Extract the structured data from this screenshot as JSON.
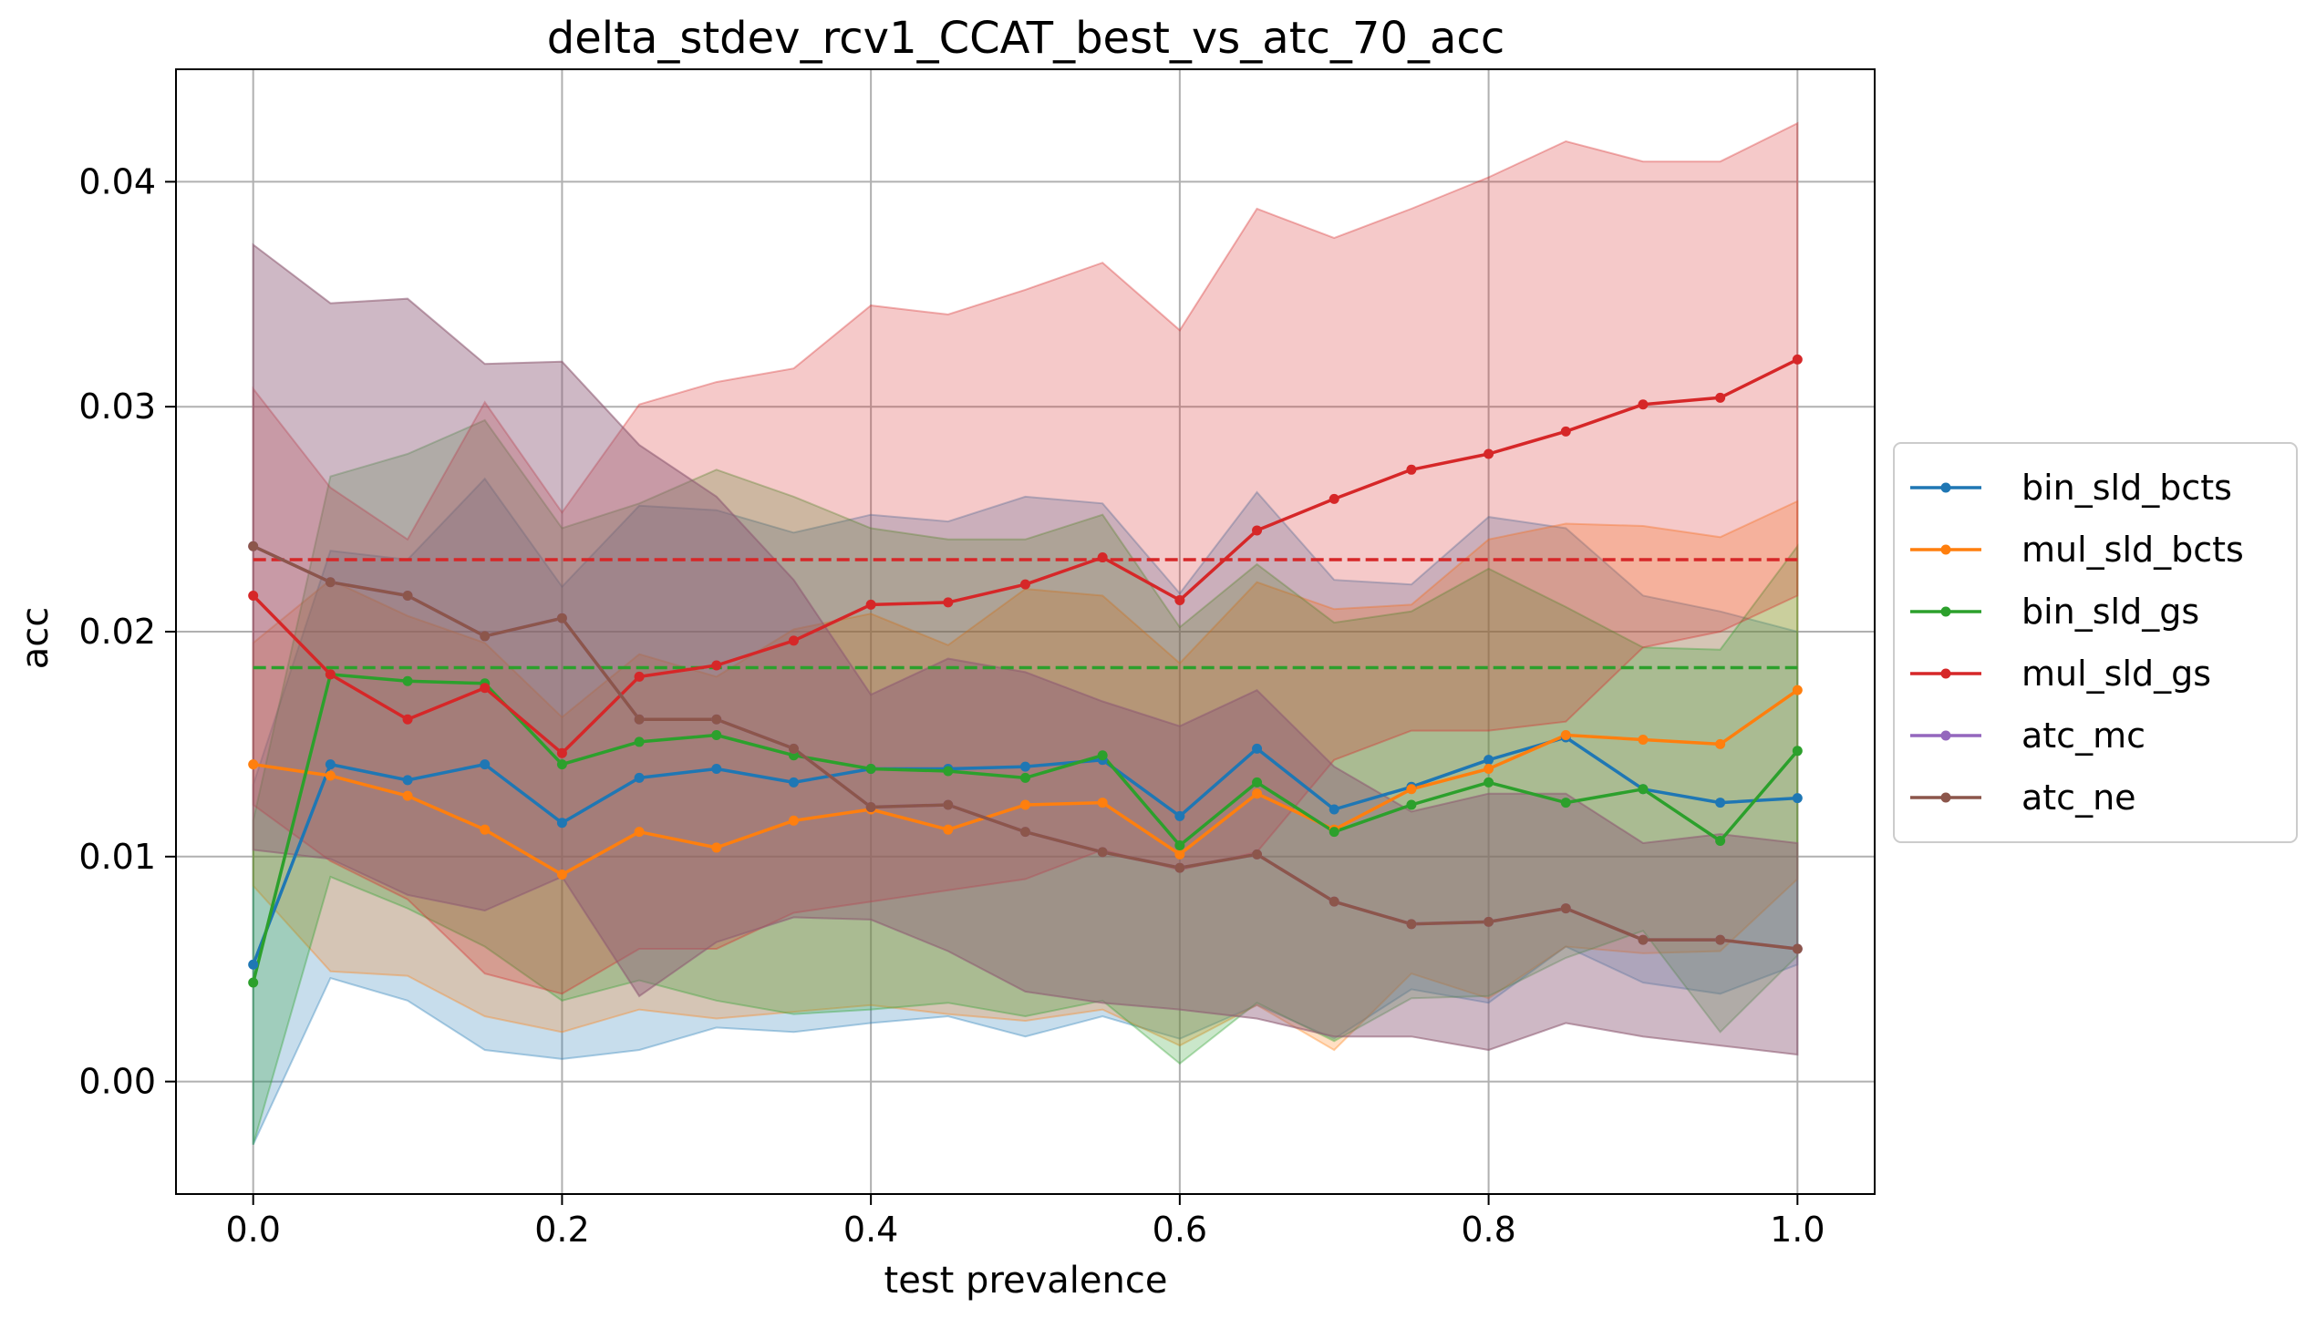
{
  "chart_data": {
    "type": "line",
    "title": "delta_stdev_rcv1_CCAT_best_vs_atc_70_acc",
    "xlabel": "test prevalence",
    "ylabel": "acc",
    "xlim": [
      -0.05,
      1.05
    ],
    "ylim": [
      -0.005,
      0.045
    ],
    "grid": true,
    "legend_position": "outside-right",
    "x": [
      0.0,
      0.05,
      0.1,
      0.15,
      0.2,
      0.25,
      0.3,
      0.35,
      0.4,
      0.45,
      0.5,
      0.55,
      0.6,
      0.65,
      0.7,
      0.75,
      0.8,
      0.85,
      0.9,
      0.95,
      1.0
    ],
    "x_ticks": [
      0.0,
      0.2,
      0.4,
      0.6,
      0.8,
      1.0
    ],
    "x_tick_labels": [
      "0.0",
      "0.2",
      "0.4",
      "0.6",
      "0.8",
      "1.0"
    ],
    "y_ticks": [
      0.0,
      0.01,
      0.02,
      0.03,
      0.04
    ],
    "y_tick_labels": [
      "0.00",
      "0.01",
      "0.02",
      "0.03",
      "0.04"
    ],
    "series": [
      {
        "name": "bin_sld_bcts",
        "color": "#1f77b4",
        "values": [
          0.0052,
          0.0141,
          0.0134,
          0.0141,
          0.0115,
          0.0135,
          0.0139,
          0.0133,
          0.0139,
          0.0139,
          0.014,
          0.0143,
          0.0118,
          0.0148,
          0.0121,
          0.0131,
          0.0143,
          0.0153,
          0.013,
          0.0124,
          0.0126
        ],
        "lower": [
          -0.0028,
          0.0046,
          0.0036,
          0.0014,
          0.001,
          0.0014,
          0.0024,
          0.0022,
          0.0026,
          0.0029,
          0.002,
          0.0029,
          0.0019,
          0.0034,
          0.0019,
          0.0041,
          0.0035,
          0.006,
          0.0044,
          0.0039,
          0.0052
        ],
        "upper": [
          0.0132,
          0.0236,
          0.0232,
          0.0268,
          0.022,
          0.0256,
          0.0254,
          0.0244,
          0.0252,
          0.0249,
          0.026,
          0.0257,
          0.0217,
          0.0262,
          0.0223,
          0.0221,
          0.0251,
          0.0246,
          0.0216,
          0.0209,
          0.02
        ]
      },
      {
        "name": "mul_sld_bcts",
        "color": "#ff7f0e",
        "values": [
          0.0141,
          0.0136,
          0.0127,
          0.0112,
          0.0092,
          0.0111,
          0.0104,
          0.0116,
          0.0121,
          0.0112,
          0.0123,
          0.0124,
          0.0101,
          0.0128,
          0.0112,
          0.013,
          0.0139,
          0.0154,
          0.0152,
          0.015,
          0.0174
        ],
        "lower": [
          0.0087,
          0.0049,
          0.0047,
          0.0029,
          0.0022,
          0.0032,
          0.0028,
          0.0031,
          0.0034,
          0.003,
          0.0027,
          0.0032,
          0.0016,
          0.0034,
          0.0014,
          0.0048,
          0.0037,
          0.006,
          0.0057,
          0.0058,
          0.009
        ],
        "upper": [
          0.0195,
          0.0223,
          0.0207,
          0.0195,
          0.0162,
          0.019,
          0.018,
          0.0201,
          0.0208,
          0.0194,
          0.0219,
          0.0216,
          0.0186,
          0.0222,
          0.021,
          0.0212,
          0.0241,
          0.0248,
          0.0247,
          0.0242,
          0.0258
        ]
      },
      {
        "name": "bin_sld_gs",
        "color": "#2ca02c",
        "values": [
          0.0044,
          0.0181,
          0.0178,
          0.0177,
          0.0141,
          0.0151,
          0.0154,
          0.0145,
          0.0139,
          0.0138,
          0.0135,
          0.0145,
          0.0105,
          0.0133,
          0.0111,
          0.0123,
          0.0133,
          0.0124,
          0.013,
          0.0107,
          0.0147
        ],
        "lower": [
          -0.0028,
          0.0091,
          0.0077,
          0.006,
          0.0036,
          0.0045,
          0.0036,
          0.003,
          0.0032,
          0.0035,
          0.0029,
          0.0036,
          0.0008,
          0.0035,
          0.0018,
          0.0037,
          0.0038,
          0.0055,
          0.0067,
          0.0022,
          0.0056
        ],
        "upper": [
          0.0116,
          0.0269,
          0.0279,
          0.0294,
          0.0246,
          0.0257,
          0.0272,
          0.026,
          0.0246,
          0.0241,
          0.0241,
          0.0252,
          0.0202,
          0.023,
          0.0204,
          0.0209,
          0.0228,
          0.0211,
          0.0193,
          0.0192,
          0.0238
        ]
      },
      {
        "name": "mul_sld_gs",
        "color": "#d62728",
        "values": [
          0.0216,
          0.0181,
          0.0161,
          0.0175,
          0.0146,
          0.018,
          0.0185,
          0.0196,
          0.0212,
          0.0213,
          0.0221,
          0.0233,
          0.0214,
          0.0245,
          0.0259,
          0.0272,
          0.0279,
          0.0289,
          0.0301,
          0.0304,
          0.0321
        ],
        "lower": [
          0.0123,
          0.0098,
          0.0081,
          0.0048,
          0.0039,
          0.0059,
          0.0059,
          0.0075,
          0.008,
          0.0085,
          0.009,
          0.0103,
          0.0094,
          0.0102,
          0.0143,
          0.0156,
          0.0156,
          0.016,
          0.0193,
          0.02,
          0.0216
        ],
        "upper": [
          0.0308,
          0.0264,
          0.0241,
          0.0302,
          0.0253,
          0.0301,
          0.0311,
          0.0317,
          0.0345,
          0.0341,
          0.0352,
          0.0364,
          0.0334,
          0.0388,
          0.0375,
          0.0388,
          0.0402,
          0.0418,
          0.0409,
          0.0409,
          0.0426
        ]
      },
      {
        "name": "atc_mc",
        "color": "#9467bd",
        "values": [
          0.0238,
          0.0222,
          0.0216,
          0.0198,
          0.0206,
          0.0161,
          0.0161,
          0.0148,
          0.0122,
          0.0123,
          0.0111,
          0.0102,
          0.0095,
          0.0101,
          0.008,
          0.007,
          0.0071,
          0.0077,
          0.0063,
          0.0063,
          0.0059
        ],
        "lower": [
          0.0103,
          0.0099,
          0.0083,
          0.0076,
          0.0091,
          0.0038,
          0.0062,
          0.0073,
          0.0072,
          0.0058,
          0.004,
          0.0035,
          0.0032,
          0.0028,
          0.002,
          0.002,
          0.0014,
          0.0026,
          0.002,
          0.0016,
          0.0012
        ],
        "upper": [
          0.0372,
          0.0346,
          0.0348,
          0.0319,
          0.032,
          0.0283,
          0.026,
          0.0223,
          0.0172,
          0.0188,
          0.0182,
          0.0169,
          0.0158,
          0.0174,
          0.014,
          0.012,
          0.0128,
          0.0128,
          0.0106,
          0.011,
          0.0106
        ]
      },
      {
        "name": "atc_ne",
        "color": "#8c564b",
        "values": [
          0.0238,
          0.0222,
          0.0216,
          0.0198,
          0.0206,
          0.0161,
          0.0161,
          0.0148,
          0.0122,
          0.0123,
          0.0111,
          0.0102,
          0.0095,
          0.0101,
          0.008,
          0.007,
          0.0071,
          0.0077,
          0.0063,
          0.0063,
          0.0059
        ],
        "lower": [
          0.0103,
          0.0099,
          0.0083,
          0.0076,
          0.0091,
          0.0038,
          0.0062,
          0.0073,
          0.0072,
          0.0058,
          0.004,
          0.0035,
          0.0032,
          0.0028,
          0.002,
          0.002,
          0.0014,
          0.0026,
          0.002,
          0.0016,
          0.0012
        ],
        "upper": [
          0.0372,
          0.0346,
          0.0348,
          0.0319,
          0.032,
          0.0283,
          0.026,
          0.0223,
          0.0172,
          0.0188,
          0.0182,
          0.0169,
          0.0158,
          0.0174,
          0.014,
          0.012,
          0.0128,
          0.0128,
          0.0106,
          0.011,
          0.0106
        ]
      }
    ],
    "reference_lines": [
      {
        "series": "mul_sld_gs",
        "color": "#d62728",
        "value": 0.0232,
        "style": "dashed"
      },
      {
        "series": "bin_sld_gs",
        "color": "#2ca02c",
        "value": 0.0184,
        "style": "dashed"
      }
    ]
  }
}
